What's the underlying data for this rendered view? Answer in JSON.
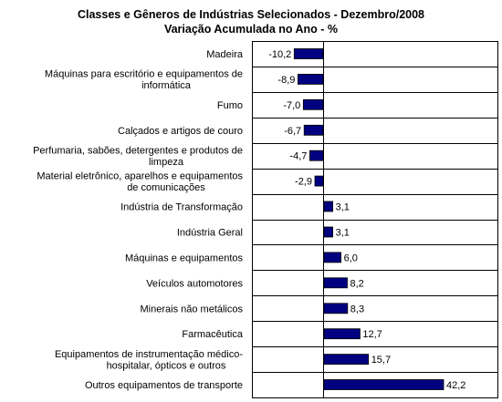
{
  "chart_data": {
    "type": "bar",
    "orientation": "horizontal",
    "title": "Classes e Gêneros de Indústrias Selecionados - Dezembro/2008",
    "subtitle": "Variação Acumulada no Ano - %",
    "categories": [
      [
        "Madeira"
      ],
      [
        "Máquinas para escritório e equipamentos de",
        "informática"
      ],
      [
        "Fumo"
      ],
      [
        "Calçados e artigos de couro"
      ],
      [
        "Perfumaria, sabões, detergentes e produtos de",
        "limpeza"
      ],
      [
        "Material eletrônico, aparelhos e equipamentos",
        "de comunicações"
      ],
      [
        "Indústria de Transformação"
      ],
      [
        "Indústria Geral"
      ],
      [
        "Máquinas e equipamentos"
      ],
      [
        "Veículos automotores"
      ],
      [
        "Minerais não metálicos"
      ],
      [
        "Farmacêutica"
      ],
      [
        "Equipamentos de instrumentação médico-",
        "hospitalar, ópticos e outros"
      ],
      [
        "Outros equipamentos de transporte"
      ]
    ],
    "values": [
      -10.2,
      -8.9,
      -7.0,
      -6.7,
      -4.7,
      -2.9,
      3.1,
      3.1,
      6.0,
      8.2,
      8.3,
      12.7,
      15.7,
      42.2
    ],
    "value_labels": [
      "-10,2",
      "-8,9",
      "-7,0",
      "-6,7",
      "-4,7",
      "-2,9",
      "3,1",
      "3,1",
      "6,0",
      "8,2",
      "8,3",
      "12,7",
      "15,7",
      "42,2"
    ],
    "bar_color": "#000080",
    "grid": "horizontal separators"
  }
}
